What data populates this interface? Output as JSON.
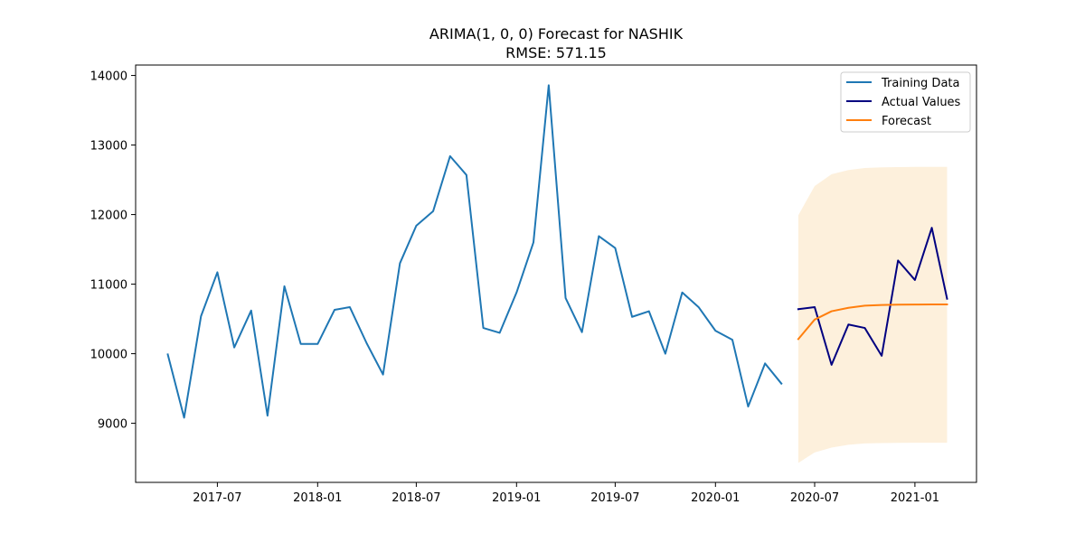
{
  "chart_data": {
    "type": "line",
    "title": "ARIMA(1, 0, 0) Forecast for NASHIK",
    "subtitle": "RMSE: 571.15",
    "xlabel": "",
    "ylabel": "",
    "xlim": [
      "2017-02-01",
      "2021-04-24"
    ],
    "ylim": [
      8150,
      14150
    ],
    "x_ticks": [
      "2017-07",
      "2018-01",
      "2018-07",
      "2019-01",
      "2019-07",
      "2020-01",
      "2020-07",
      "2021-01"
    ],
    "y_ticks": [
      9000,
      10000,
      11000,
      12000,
      13000,
      14000
    ],
    "grid": false,
    "legend": {
      "position": "top-right"
    },
    "series": [
      {
        "name": "Training Data",
        "color": "#1f77b4",
        "x": [
          "2017-04-01",
          "2017-05-01",
          "2017-06-01",
          "2017-07-01",
          "2017-08-01",
          "2017-09-01",
          "2017-10-01",
          "2017-11-01",
          "2017-12-01",
          "2018-01-01",
          "2018-02-01",
          "2018-03-01",
          "2018-04-01",
          "2018-05-01",
          "2018-06-01",
          "2018-07-01",
          "2018-08-01",
          "2018-09-01",
          "2018-10-01",
          "2018-11-01",
          "2018-12-01",
          "2019-01-01",
          "2019-02-01",
          "2019-03-01",
          "2019-04-01",
          "2019-05-01",
          "2019-06-01",
          "2019-07-01",
          "2019-08-01",
          "2019-09-01",
          "2019-10-01",
          "2019-11-01",
          "2019-12-01",
          "2020-01-01",
          "2020-02-01",
          "2020-03-01",
          "2020-04-01",
          "2020-05-01"
        ],
        "values": [
          9990,
          9080,
          10540,
          11170,
          10090,
          10620,
          9110,
          10970,
          10140,
          10140,
          10630,
          10670,
          10150,
          9700,
          11300,
          11840,
          12050,
          12840,
          12570,
          10370,
          10300,
          10880,
          11600,
          13860,
          10800,
          10310,
          11690,
          11520,
          10530,
          10610,
          10000,
          10880,
          10670,
          10330,
          10200,
          9240,
          9860,
          9570
        ]
      },
      {
        "name": "Actual Values",
        "color": "#000080",
        "x": [
          "2020-06-01",
          "2020-07-01",
          "2020-08-01",
          "2020-09-01",
          "2020-10-01",
          "2020-11-01",
          "2020-12-01",
          "2021-01-01",
          "2021-02-01",
          "2021-03-01"
        ],
        "values": [
          10640,
          10670,
          9840,
          10420,
          10370,
          9970,
          11340,
          11060,
          11810,
          10790
        ]
      },
      {
        "name": "Forecast",
        "color": "#ff7f0e",
        "x": [
          "2020-06-01",
          "2020-07-01",
          "2020-08-01",
          "2020-09-01",
          "2020-10-01",
          "2020-11-01",
          "2020-12-01",
          "2021-01-01",
          "2021-02-01",
          "2021-03-01"
        ],
        "values": [
          10210,
          10490,
          10610,
          10660,
          10690,
          10700,
          10705,
          10707,
          10708,
          10708
        ]
      }
    ],
    "confidence_band": {
      "color": "#fdf0dc",
      "x": [
        "2020-06-01",
        "2020-07-01",
        "2020-08-01",
        "2020-09-01",
        "2020-10-01",
        "2020-11-01",
        "2020-12-01",
        "2021-01-01",
        "2021-02-01",
        "2021-03-01"
      ],
      "lower": [
        8430,
        8580,
        8650,
        8690,
        8710,
        8715,
        8718,
        8720,
        8720,
        8720
      ],
      "upper": [
        11990,
        12410,
        12580,
        12640,
        12670,
        12680,
        12683,
        12685,
        12686,
        12686
      ]
    }
  }
}
